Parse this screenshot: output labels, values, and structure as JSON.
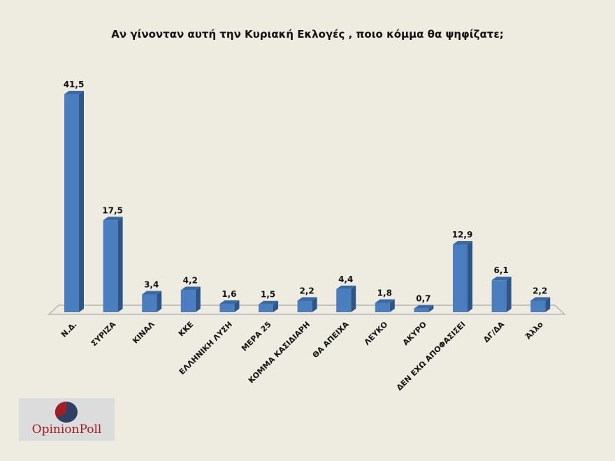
{
  "chart_data": {
    "type": "bar",
    "title": "Αν γίνονταν αυτή την Κυριακή Εκλογές , ποιο κόμμα θα ψηφίζατε;",
    "categories": [
      "Ν.Δ.",
      "ΣΥΡΙΖΑ",
      "ΚΙΝΑΛ",
      "ΚΚΕ",
      "ΕΛΛΗΝΙΚΗ ΛΥΣΗ",
      "ΜΕΡΑ 25",
      "ΚΟΜΜΑ ΚΑΣΙΔΙΑΡΗ",
      "ΘΑ ΑΠΕΙΧΑ",
      "ΛΕΥΚΟ",
      "ΑΚΥΡΟ",
      "ΔΕΝ ΕΧΩ ΑΠΟΦΑΣΙΣΕΙ",
      "ΔΓ/ΔΑ",
      "Άλλο"
    ],
    "values": [
      41.5,
      17.5,
      3.4,
      4.2,
      1.6,
      1.5,
      2.2,
      4.4,
      1.8,
      0.7,
      12.9,
      6.1,
      2.2
    ],
    "value_labels": [
      "41,5",
      "17,5",
      "3,4",
      "4,2",
      "1,6",
      "1,5",
      "2,2",
      "4,4",
      "1,8",
      "0,7",
      "12,9",
      "6,1",
      "2,2"
    ],
    "xlabel": "",
    "ylabel": "",
    "ylim": [
      0,
      45
    ],
    "grid": false,
    "legend": "none",
    "style": "3d-column",
    "bar_color": "#4a7ebf",
    "bar_side_color": "#2f5584",
    "bar_top_color": "#3b6aa3"
  },
  "logo": {
    "text": "OpinionPoll",
    "pie_red": "#a01f24",
    "pie_blue": "#2f3f66"
  }
}
